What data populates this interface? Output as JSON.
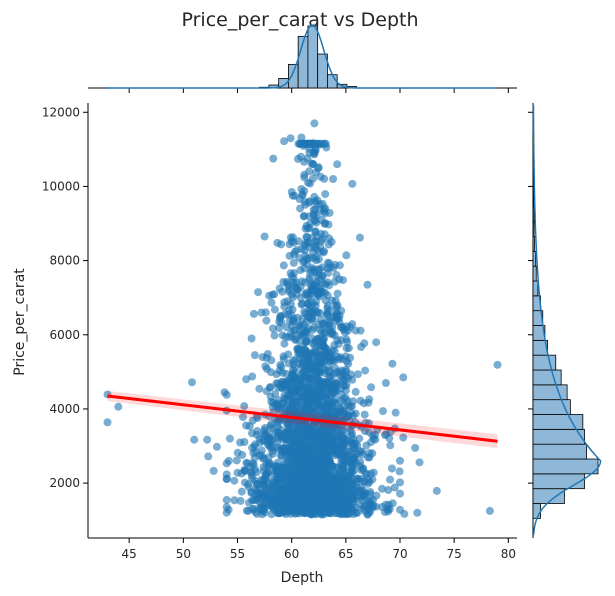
{
  "chart_data": {
    "type": "scatter",
    "title": "Price_per_carat vs Depth",
    "xlabel": "Depth",
    "ylabel": "Price_per_carat",
    "xlim": [
      41.2,
      80.8
    ],
    "ylim": [
      520,
      12250
    ],
    "xticks": [
      45,
      50,
      55,
      60,
      65,
      70,
      75,
      80
    ],
    "yticks": [
      2000,
      4000,
      6000,
      8000,
      10000,
      12000
    ],
    "grid": false,
    "colors": {
      "points": "#1f77b4",
      "regression": "#ff0000",
      "hist": "#8fb8d8",
      "kde": "#1f77b4"
    },
    "outliers": [
      {
        "x": 43.0,
        "y": 4390
      },
      {
        "x": 43.0,
        "y": 3640
      },
      {
        "x": 44.0,
        "y": 4060
      },
      {
        "x": 50.8,
        "y": 4720
      },
      {
        "x": 51.0,
        "y": 3170
      },
      {
        "x": 52.2,
        "y": 3170
      },
      {
        "x": 52.3,
        "y": 2720
      },
      {
        "x": 52.8,
        "y": 2330
      },
      {
        "x": 53.1,
        "y": 2980
      },
      {
        "x": 53.8,
        "y": 4450
      },
      {
        "x": 54.2,
        "y": 2600
      },
      {
        "x": 54.3,
        "y": 3200
      },
      {
        "x": 55.0,
        "y": 2280
      },
      {
        "x": 55.5,
        "y": 3780
      },
      {
        "x": 55.8,
        "y": 4800
      },
      {
        "x": 56.3,
        "y": 5900
      },
      {
        "x": 56.6,
        "y": 5450
      },
      {
        "x": 56.9,
        "y": 7150
      },
      {
        "x": 57.2,
        "y": 6600
      },
      {
        "x": 57.5,
        "y": 8650
      },
      {
        "x": 58.3,
        "y": 10750
      },
      {
        "x": 59.3,
        "y": 11220
      },
      {
        "x": 59.9,
        "y": 11300
      },
      {
        "x": 60.9,
        "y": 11320
      },
      {
        "x": 62.1,
        "y": 11700
      },
      {
        "x": 63.2,
        "y": 11050
      },
      {
        "x": 64.2,
        "y": 10600
      },
      {
        "x": 65.6,
        "y": 10070
      },
      {
        "x": 66.3,
        "y": 8620
      },
      {
        "x": 67.0,
        "y": 7350
      },
      {
        "x": 66.7,
        "y": 5770
      },
      {
        "x": 67.8,
        "y": 5800
      },
      {
        "x": 69.3,
        "y": 5220
      },
      {
        "x": 68.7,
        "y": 4700
      },
      {
        "x": 70.3,
        "y": 4850
      },
      {
        "x": 69.6,
        "y": 3900
      },
      {
        "x": 70.3,
        "y": 3230
      },
      {
        "x": 71.4,
        "y": 2950
      },
      {
        "x": 71.8,
        "y": 2560
      },
      {
        "x": 70.4,
        "y": 1170
      },
      {
        "x": 71.6,
        "y": 1200
      },
      {
        "x": 73.4,
        "y": 1790
      },
      {
        "x": 78.3,
        "y": 1250
      },
      {
        "x": 79.0,
        "y": 5190
      },
      {
        "x": 68.7,
        "y": 1420
      },
      {
        "x": 56.4,
        "y": 1300
      }
    ],
    "regression": {
      "x": [
        43.0,
        79.0
      ],
      "y": [
        4350,
        3130
      ]
    },
    "marginal_x": {
      "bin_edges": [
        57.0,
        57.9,
        58.8,
        59.7,
        60.6,
        61.5,
        62.4,
        63.3,
        64.2,
        65.1,
        66.0
      ],
      "counts": [
        1,
        4,
        13,
        32,
        70,
        84,
        46,
        18,
        5,
        2
      ]
    },
    "marginal_y": {
      "bin_edges": [
        1050,
        1450,
        1850,
        2250,
        2650,
        3050,
        3450,
        3850,
        4250,
        4650,
        5050,
        5450,
        5850,
        6250,
        6650,
        7050,
        7450,
        7850,
        8250,
        8650,
        9050,
        9450,
        9850,
        10250,
        10650,
        11050,
        11450,
        11850
      ],
      "counts": [
        14,
        58,
        95,
        120,
        99,
        95,
        92,
        69,
        63,
        52,
        42,
        27,
        22,
        18,
        14,
        9,
        6,
        5,
        3,
        2,
        2,
        1,
        1,
        1,
        1,
        0,
        0
      ]
    }
  }
}
